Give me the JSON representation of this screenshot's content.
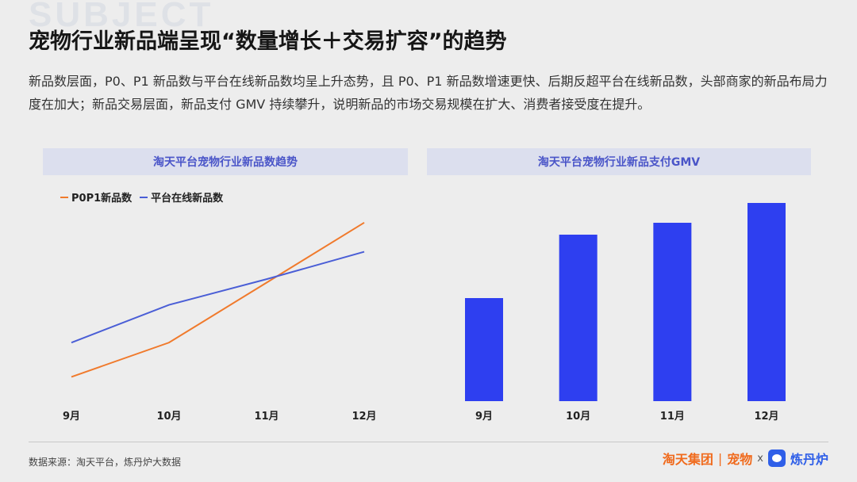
{
  "title": "宠物行业新品端呈现“数量增长＋交易扩容”的趋势",
  "intro": "新品数层面，P0、P1 新品数与平台在线新品数均呈上升态势，且 P0、P1 新品数增速更快、后期反超平台在线新品数，头部商家的新品布局力度在加大；新品交易层面，新品支付 GMV 持续攀升，说明新品的市场交易规模在扩大、消费者接受度在提升。",
  "watermark": "SUBJECT",
  "chart_data": [
    {
      "type": "line",
      "title": "淘天平台宠物行业新品数趋势",
      "categories": [
        "9月",
        "10月",
        "11月",
        "12月"
      ],
      "series": [
        {
          "name": "P0P1新品数",
          "color": "#f07a2c",
          "values": [
            0.1,
            0.3,
            0.65,
            1.0
          ]
        },
        {
          "name": "平台在线新品数",
          "color": "#4a5ed6",
          "values": [
            0.3,
            0.52,
            0.67,
            0.83
          ]
        }
      ],
      "ylim": [
        0,
        1.05
      ],
      "legend": "top-left",
      "grid": false
    },
    {
      "type": "bar",
      "title": "淘天平台宠物行业新品支付GMV",
      "categories": [
        "9月",
        "10月",
        "11月",
        "12月"
      ],
      "values": [
        0.52,
        0.84,
        0.9,
        1.0
      ],
      "color": "#2e3ff0",
      "ylim": [
        0,
        1.0
      ],
      "grid": false
    }
  ],
  "footer": {
    "source": "数据来源：淘天平台，炼丹炉大数据",
    "brand_tao": "淘天集团",
    "brand_sep": "|",
    "brand_pet": "宠物",
    "brand_x": "x",
    "brand_lian": "炼丹炉"
  }
}
